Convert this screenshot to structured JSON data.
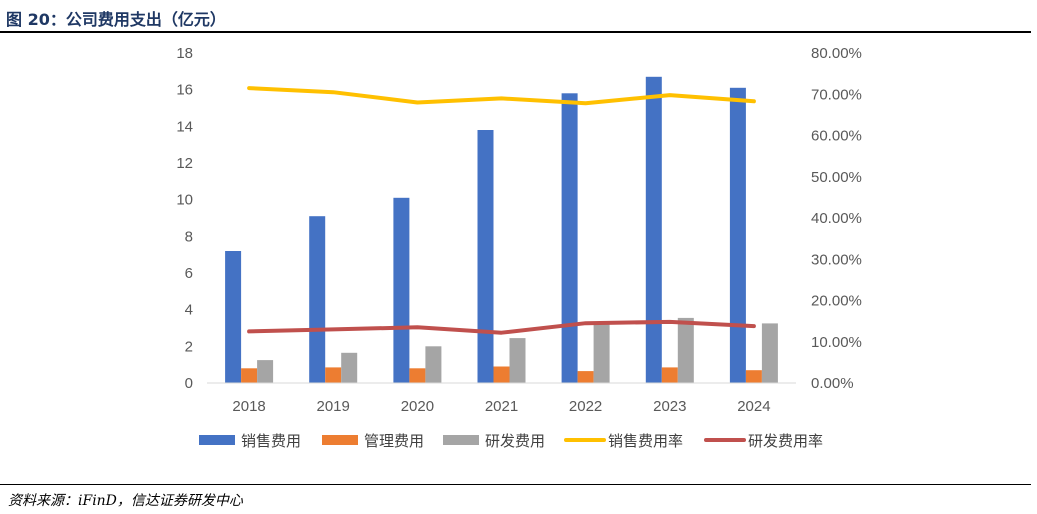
{
  "figure": {
    "title": "图 20：公司费用支出（亿元）",
    "source": "资料来源：iFinD，信达证券研发中心"
  },
  "colors": {
    "sales_expense": "#4472C4",
    "admin_expense": "#ED7D31",
    "rd_expense": "#A5A5A5",
    "sales_rate": "#FFC000",
    "rd_rate": "#C0504D",
    "title": "#1f3864"
  },
  "chart_data": {
    "type": "bar",
    "categories": [
      "2018",
      "2019",
      "2020",
      "2021",
      "2022",
      "2023",
      "2024"
    ],
    "series": [
      {
        "name": "销售费用",
        "type": "bar",
        "axis": "left",
        "values": [
          7.2,
          9.1,
          10.1,
          13.8,
          15.8,
          16.7,
          16.1
        ]
      },
      {
        "name": "管理费用",
        "type": "bar",
        "axis": "left",
        "values": [
          0.8,
          0.85,
          0.8,
          0.9,
          0.65,
          0.85,
          0.7
        ]
      },
      {
        "name": "研发费用",
        "type": "bar",
        "axis": "left",
        "values": [
          1.25,
          1.65,
          2.0,
          2.45,
          3.3,
          3.55,
          3.25
        ]
      },
      {
        "name": "销售费用率",
        "type": "line",
        "axis": "right",
        "values": [
          71.5,
          70.5,
          68.0,
          69.0,
          67.8,
          69.8,
          68.3
        ]
      },
      {
        "name": "研发费用率",
        "type": "line",
        "axis": "right",
        "values": [
          12.5,
          13.0,
          13.5,
          12.2,
          14.5,
          14.8,
          13.8
        ]
      }
    ],
    "y_left": {
      "min": 0,
      "max": 18,
      "step": 2,
      "ticks": [
        "0",
        "2",
        "4",
        "6",
        "8",
        "10",
        "12",
        "14",
        "16",
        "18"
      ]
    },
    "y_right": {
      "min": 0,
      "max": 80,
      "step": 10,
      "ticks": [
        "0.00%",
        "10.00%",
        "20.00%",
        "30.00%",
        "40.00%",
        "50.00%",
        "60.00%",
        "70.00%",
        "80.00%"
      ]
    },
    "grid": false,
    "legend_position": "bottom"
  }
}
